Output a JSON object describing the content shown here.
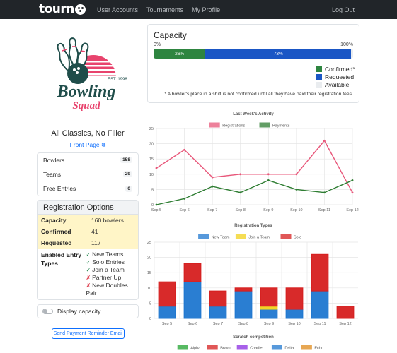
{
  "nav": {
    "brand": "tourn",
    "links": [
      "User Accounts",
      "Tournaments",
      "My Profile"
    ],
    "logout": "Log Out"
  },
  "logo": {
    "est": "EST. 1998",
    "word1": "Bowling",
    "word2": "Squad"
  },
  "event": {
    "title": "All Classics, No Filler",
    "front_page": "Front Page"
  },
  "stats": [
    {
      "label": "Bowlers",
      "value": "158"
    },
    {
      "label": "Teams",
      "value": "29"
    },
    {
      "label": "Free Entries",
      "value": "0"
    }
  ],
  "registration_options": {
    "title": "Registration Options",
    "capacity_label": "Capacity",
    "capacity_value": "160 bowlers",
    "confirmed_label": "Confirmed",
    "confirmed_value": "41",
    "requested_label": "Requested",
    "requested_value": "117",
    "entry_types_label": "Enabled Entry Types",
    "entry_types": [
      {
        "label": "New Teams",
        "enabled": true
      },
      {
        "label": "Solo Entries",
        "enabled": true
      },
      {
        "label": "Join a Team",
        "enabled": true
      },
      {
        "label": "Partner Up",
        "enabled": false
      },
      {
        "label": "New Doubles Pair",
        "enabled": false
      }
    ]
  },
  "display_capacity": "Display capacity",
  "reminder_button": "Send Payment Reminder Email",
  "capacity": {
    "title": "Capacity",
    "min_label": "0%",
    "max_label": "100%",
    "confirmed_pct": 26,
    "requested_pct": 73,
    "confirmed_text": "26%",
    "requested_text": "73%",
    "legend": [
      "Confirmed*",
      "Requested",
      "Available"
    ],
    "note": "* A bowler's place in a shift is not confirmed until all they have paid their registration fees.",
    "colors": {
      "confirmed": "#2e8540",
      "requested": "#1a56c5",
      "available": "#e9ecef"
    }
  },
  "chart_data": [
    {
      "type": "line",
      "title": "Last Week's Activity",
      "categories": [
        "Sep 5",
        "Sep 6",
        "Sep 7",
        "Sep 8",
        "Sep 9",
        "Sep 10",
        "Sep 11",
        "Sep 12"
      ],
      "series": [
        {
          "name": "Registrations",
          "values": [
            12,
            18,
            9,
            10,
            10,
            10,
            21,
            4
          ],
          "color": "#e8577a"
        },
        {
          "name": "Payments",
          "values": [
            0,
            2,
            6,
            4,
            8,
            5,
            4,
            8
          ],
          "color": "#2e7d32"
        }
      ],
      "ylim": [
        0,
        25
      ],
      "yticks": [
        0,
        5,
        10,
        15,
        20,
        25
      ],
      "grid": true,
      "legend": "top"
    },
    {
      "type": "bar",
      "stacked": true,
      "title": "Registration Types",
      "categories": [
        "Sep 5",
        "Sep 6",
        "Sep 7",
        "Sep 8",
        "Sep 9",
        "Sep 10",
        "Sep 11",
        "Sep 12"
      ],
      "series": [
        {
          "name": "New Team",
          "values": [
            4,
            12,
            4,
            9,
            3,
            3,
            9,
            0
          ],
          "color": "#1f77d0"
        },
        {
          "name": "Join a Team",
          "values": [
            0,
            0,
            0,
            0,
            1,
            0,
            0,
            0
          ],
          "color": "#f2d21b"
        },
        {
          "name": "Solo",
          "values": [
            8,
            6,
            5,
            1,
            6,
            7,
            12,
            4
          ],
          "color": "#d61f1f"
        }
      ],
      "ylim": [
        0,
        25
      ],
      "yticks": [
        0,
        5,
        10,
        15,
        20,
        25
      ],
      "grid": true,
      "legend": "top"
    },
    {
      "type": "bar",
      "title": "Scratch competition",
      "series": [
        {
          "name": "Alpha",
          "color": "#1fa32e"
        },
        {
          "name": "Bravo",
          "color": "#d61f1f"
        },
        {
          "name": "Charlie",
          "color": "#8a2be2"
        },
        {
          "name": "Delta",
          "color": "#1f77d0"
        },
        {
          "name": "Echo",
          "color": "#e08a1a"
        }
      ],
      "legend": "top"
    }
  ]
}
